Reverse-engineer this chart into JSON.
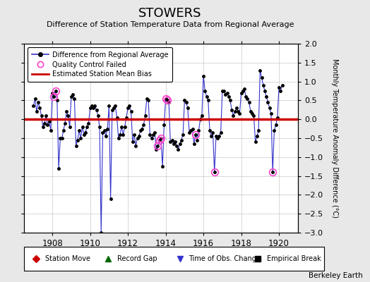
{
  "title": "STOWERS",
  "subtitle": "Difference of Station Temperature Data from Regional Average",
  "ylabel": "Monthly Temperature Anomaly Difference (°C)",
  "xlim": [
    1906.5,
    1921.0
  ],
  "ylim": [
    -3.0,
    2.0
  ],
  "yticks": [
    -3,
    -2.5,
    -2,
    -1.5,
    -1,
    -0.5,
    0,
    0.5,
    1,
    1.5,
    2
  ],
  "xticks": [
    1908,
    1910,
    1912,
    1914,
    1916,
    1918,
    1920
  ],
  "bias_value": 0.0,
  "background_color": "#e8e8e8",
  "plot_bg_color": "#ffffff",
  "line_color": "#3333cc",
  "bias_color": "#cc0000",
  "qc_color": "#ff44cc",
  "watermark": "Berkeley Earth",
  "series": [
    [
      1907.0,
      0.35
    ],
    [
      1907.083,
      0.55
    ],
    [
      1907.167,
      0.2
    ],
    [
      1907.25,
      0.45
    ],
    [
      1907.333,
      0.3
    ],
    [
      1907.417,
      0.1
    ],
    [
      1907.5,
      -0.2
    ],
    [
      1907.583,
      -0.1
    ],
    [
      1907.667,
      0.1
    ],
    [
      1907.75,
      -0.15
    ],
    [
      1907.833,
      -0.05
    ],
    [
      1907.917,
      -0.3
    ],
    [
      1908.0,
      0.7
    ],
    [
      1908.083,
      0.6
    ],
    [
      1908.167,
      0.75
    ],
    [
      1908.25,
      0.5
    ],
    [
      1908.333,
      -1.3
    ],
    [
      1908.417,
      -0.5
    ],
    [
      1908.5,
      -0.5
    ],
    [
      1908.583,
      -0.3
    ],
    [
      1908.667,
      -0.1
    ],
    [
      1908.75,
      0.2
    ],
    [
      1908.833,
      0.1
    ],
    [
      1908.917,
      -0.2
    ],
    [
      1909.0,
      0.6
    ],
    [
      1909.083,
      0.65
    ],
    [
      1909.167,
      0.55
    ],
    [
      1909.25,
      -0.7
    ],
    [
      1909.333,
      -0.55
    ],
    [
      1909.417,
      -0.3
    ],
    [
      1909.5,
      -0.5
    ],
    [
      1909.583,
      -0.2
    ],
    [
      1909.667,
      -0.4
    ],
    [
      1909.75,
      -0.35
    ],
    [
      1909.833,
      -0.2
    ],
    [
      1909.917,
      -0.1
    ],
    [
      1910.0,
      0.3
    ],
    [
      1910.083,
      0.35
    ],
    [
      1910.167,
      0.3
    ],
    [
      1910.25,
      0.35
    ],
    [
      1910.333,
      0.25
    ],
    [
      1910.417,
      0.1
    ],
    [
      1910.5,
      -0.2
    ],
    [
      1910.583,
      -3.0
    ],
    [
      1910.667,
      -0.35
    ],
    [
      1910.75,
      -0.3
    ],
    [
      1910.833,
      -0.45
    ],
    [
      1910.917,
      -0.25
    ],
    [
      1911.0,
      0.35
    ],
    [
      1911.083,
      -2.1
    ],
    [
      1911.167,
      0.25
    ],
    [
      1911.25,
      0.3
    ],
    [
      1911.333,
      0.35
    ],
    [
      1911.417,
      0.05
    ],
    [
      1911.5,
      -0.5
    ],
    [
      1911.583,
      -0.4
    ],
    [
      1911.667,
      -0.2
    ],
    [
      1911.75,
      -0.4
    ],
    [
      1911.833,
      -0.2
    ],
    [
      1911.917,
      0.05
    ],
    [
      1912.0,
      0.3
    ],
    [
      1912.083,
      0.35
    ],
    [
      1912.167,
      0.2
    ],
    [
      1912.25,
      -0.6
    ],
    [
      1912.333,
      -0.4
    ],
    [
      1912.417,
      -0.7
    ],
    [
      1912.5,
      -0.5
    ],
    [
      1912.583,
      -0.45
    ],
    [
      1912.667,
      -0.3
    ],
    [
      1912.75,
      -0.25
    ],
    [
      1912.833,
      -0.15
    ],
    [
      1912.917,
      0.1
    ],
    [
      1913.0,
      0.55
    ],
    [
      1913.083,
      0.5
    ],
    [
      1913.167,
      -0.4
    ],
    [
      1913.25,
      -0.5
    ],
    [
      1913.333,
      -0.4
    ],
    [
      1913.417,
      -0.35
    ],
    [
      1913.5,
      -0.8
    ],
    [
      1913.583,
      -0.7
    ],
    [
      1913.667,
      -0.55
    ],
    [
      1913.75,
      -0.5
    ],
    [
      1913.833,
      -1.25
    ],
    [
      1913.917,
      -0.15
    ],
    [
      1914.0,
      0.55
    ],
    [
      1914.083,
      0.5
    ],
    [
      1914.167,
      0.45
    ],
    [
      1914.25,
      -0.6
    ],
    [
      1914.333,
      -0.55
    ],
    [
      1914.417,
      -0.65
    ],
    [
      1914.5,
      -0.6
    ],
    [
      1914.583,
      -0.7
    ],
    [
      1914.667,
      -0.8
    ],
    [
      1914.75,
      -0.65
    ],
    [
      1914.833,
      -0.55
    ],
    [
      1914.917,
      -0.4
    ],
    [
      1915.0,
      0.5
    ],
    [
      1915.083,
      0.45
    ],
    [
      1915.167,
      0.3
    ],
    [
      1915.25,
      -0.35
    ],
    [
      1915.333,
      -0.3
    ],
    [
      1915.417,
      -0.25
    ],
    [
      1915.5,
      -0.65
    ],
    [
      1915.583,
      -0.4
    ],
    [
      1915.667,
      -0.55
    ],
    [
      1915.75,
      -0.3
    ],
    [
      1915.833,
      0.0
    ],
    [
      1915.917,
      0.1
    ],
    [
      1916.0,
      1.15
    ],
    [
      1916.083,
      0.75
    ],
    [
      1916.167,
      0.6
    ],
    [
      1916.25,
      0.5
    ],
    [
      1916.333,
      -0.3
    ],
    [
      1916.417,
      -0.45
    ],
    [
      1916.5,
      -0.35
    ],
    [
      1916.583,
      -1.4
    ],
    [
      1916.667,
      -0.45
    ],
    [
      1916.75,
      -0.5
    ],
    [
      1916.833,
      -0.45
    ],
    [
      1916.917,
      -0.35
    ],
    [
      1917.0,
      0.75
    ],
    [
      1917.083,
      0.75
    ],
    [
      1917.167,
      0.65
    ],
    [
      1917.25,
      0.7
    ],
    [
      1917.333,
      0.6
    ],
    [
      1917.417,
      0.5
    ],
    [
      1917.5,
      0.25
    ],
    [
      1917.583,
      0.1
    ],
    [
      1917.667,
      0.2
    ],
    [
      1917.75,
      0.3
    ],
    [
      1917.833,
      0.2
    ],
    [
      1917.917,
      0.15
    ],
    [
      1918.0,
      0.7
    ],
    [
      1918.083,
      0.75
    ],
    [
      1918.167,
      0.8
    ],
    [
      1918.25,
      0.6
    ],
    [
      1918.333,
      0.55
    ],
    [
      1918.417,
      0.45
    ],
    [
      1918.5,
      0.2
    ],
    [
      1918.583,
      0.15
    ],
    [
      1918.667,
      0.1
    ],
    [
      1918.75,
      -0.6
    ],
    [
      1918.833,
      -0.45
    ],
    [
      1918.917,
      -0.3
    ],
    [
      1919.0,
      1.3
    ],
    [
      1919.083,
      1.1
    ],
    [
      1919.167,
      0.9
    ],
    [
      1919.25,
      0.75
    ],
    [
      1919.333,
      0.6
    ],
    [
      1919.417,
      0.45
    ],
    [
      1919.5,
      0.3
    ],
    [
      1919.583,
      0.15
    ],
    [
      1919.667,
      -1.4
    ],
    [
      1919.75,
      -0.3
    ],
    [
      1919.833,
      -0.15
    ],
    [
      1919.917,
      0.05
    ],
    [
      1920.0,
      0.85
    ],
    [
      1920.083,
      0.75
    ],
    [
      1920.167,
      0.9
    ]
  ],
  "qc_failed": [
    [
      1908.083,
      0.6
    ],
    [
      1908.167,
      0.75
    ],
    [
      1913.583,
      -0.7
    ],
    [
      1913.667,
      -0.55
    ],
    [
      1913.75,
      -0.5
    ],
    [
      1914.0,
      0.55
    ],
    [
      1914.083,
      0.5
    ],
    [
      1915.583,
      -0.4
    ],
    [
      1916.583,
      -1.4
    ],
    [
      1919.667,
      -1.4
    ]
  ]
}
